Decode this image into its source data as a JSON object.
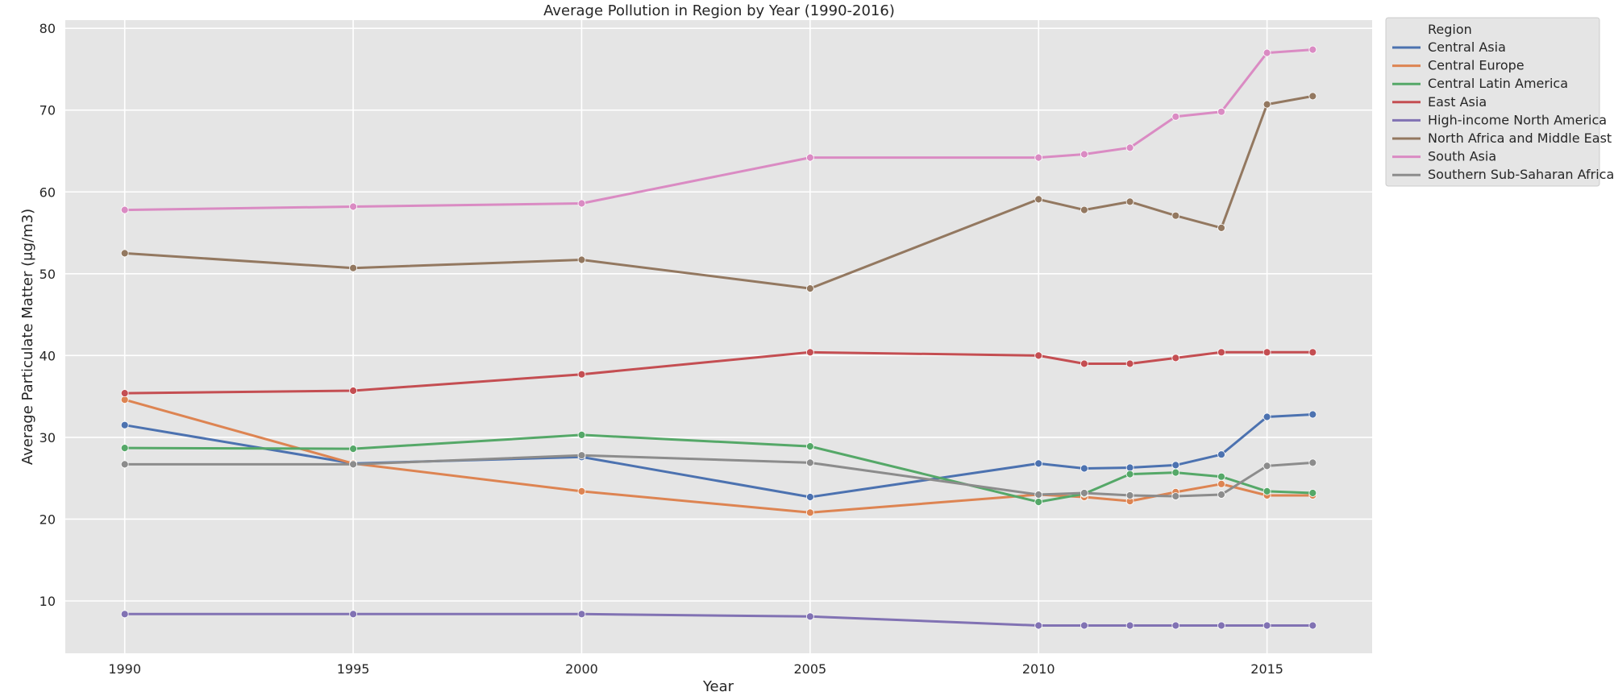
{
  "chart_data": {
    "type": "line",
    "title": "Average Pollution in Region by Year (1990-2016)",
    "xlabel": "Year",
    "ylabel": "Average Particulate Matter (μg/m3)",
    "xlim": [
      1988.7,
      2017.3
    ],
    "ylim": [
      3.6,
      81
    ],
    "x_ticks": [
      1990,
      1995,
      2000,
      2005,
      2010,
      2015
    ],
    "y_ticks": [
      10,
      20,
      30,
      40,
      50,
      60,
      70,
      80
    ],
    "grid": true,
    "x": [
      1990,
      1995,
      2000,
      2005,
      2010,
      2011,
      2012,
      2013,
      2014,
      2015,
      2016
    ],
    "legend": {
      "title": "Region",
      "position": "outside-right-top"
    },
    "series": [
      {
        "name": "Central Asia",
        "color": "#4c72b0",
        "values": [
          31.5,
          26.8,
          27.6,
          22.7,
          26.8,
          26.2,
          26.3,
          26.6,
          27.9,
          32.5,
          32.8
        ]
      },
      {
        "name": "Central Europe",
        "color": "#dd8452",
        "values": [
          34.6,
          26.8,
          23.4,
          20.8,
          23.0,
          22.7,
          22.2,
          23.3,
          24.3,
          22.9,
          22.9
        ]
      },
      {
        "name": "Central Latin America",
        "color": "#55a868",
        "values": [
          28.7,
          28.6,
          30.3,
          28.9,
          22.1,
          23.1,
          25.5,
          25.7,
          25.2,
          23.4,
          23.2
        ]
      },
      {
        "name": "East Asia",
        "color": "#c44e52",
        "values": [
          35.4,
          35.7,
          37.7,
          40.4,
          40.0,
          39.0,
          39.0,
          39.7,
          40.4,
          40.4,
          40.4
        ]
      },
      {
        "name": "High-income North America",
        "color": "#8172b3",
        "values": [
          8.4,
          8.4,
          8.4,
          8.1,
          7.0,
          7.0,
          7.0,
          7.0,
          7.0,
          7.0,
          7.0
        ]
      },
      {
        "name": "North Africa and Middle East",
        "color": "#937860",
        "values": [
          52.5,
          50.7,
          51.7,
          48.2,
          59.1,
          57.8,
          58.8,
          57.1,
          55.6,
          70.7,
          71.7
        ]
      },
      {
        "name": "South Asia",
        "color": "#da8bc3",
        "values": [
          57.8,
          58.2,
          58.6,
          64.2,
          64.2,
          64.6,
          65.4,
          69.2,
          69.8,
          77.0,
          77.4
        ]
      },
      {
        "name": "Southern Sub-Saharan Africa",
        "color": "#8c8c8c",
        "values": [
          26.7,
          26.7,
          27.8,
          26.9,
          23.0,
          23.2,
          22.9,
          22.8,
          23.0,
          26.5,
          26.9
        ]
      }
    ]
  }
}
